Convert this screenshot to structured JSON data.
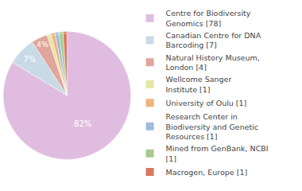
{
  "chart_data": {
    "type": "pie",
    "categories": [
      "Centre for Biodiversity Genomics [78]",
      "Canadian Centre for DNA Barcoding [7]",
      "Natural History Museum, London [4]",
      "Wellcome Sanger Institute [1]",
      "University of Oulu [1]",
      "Research Center in Biodiversity and Genetic Resources [1]",
      "Mined from GenBank, NCBI [1]",
      "Macrogen, Europe [1]"
    ],
    "values": [
      82,
      7,
      4,
      1,
      1,
      1,
      1,
      1
    ],
    "value_labels": [
      "82%",
      "7%",
      "4%",
      "1%",
      "1%",
      "1%",
      "1%",
      "1%"
    ],
    "data_labels": true,
    "legend": "right",
    "colors": [
      "#e0bde0",
      "#c8dae6",
      "#e0a59b",
      "#e6e6a6",
      "#f0b27e",
      "#9fbcd8",
      "#a6cb8f",
      "#d8785f"
    ]
  }
}
